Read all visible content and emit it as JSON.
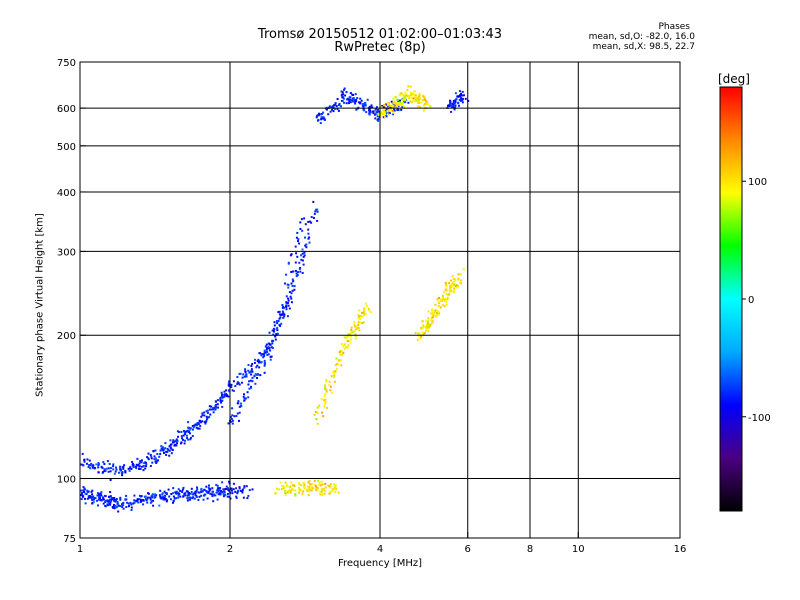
{
  "chart_data": {
    "type": "scatter",
    "title": "Tromsø 20150512 01:02:00–01:03:43",
    "subtitle": "RwPretec (8p)",
    "xlabel": "Frequency [MHz]",
    "ylabel": "Stationary phase Virtual Height [km]",
    "x_scale": "log",
    "y_scale": "log",
    "xlim": [
      1,
      16
    ],
    "ylim": [
      75,
      750
    ],
    "x_ticks": [
      1,
      2,
      4,
      6,
      8,
      10,
      16
    ],
    "x_tick_labels": [
      "1",
      "2",
      "4",
      "6",
      "8",
      "10",
      "16"
    ],
    "y_ticks": [
      75,
      100,
      200,
      300,
      400,
      500,
      600,
      750
    ],
    "y_tick_labels": [
      "75",
      "100",
      "200",
      "300",
      "400",
      "500",
      "600",
      "750"
    ],
    "x_grid": [
      2,
      4,
      6,
      8,
      10
    ],
    "y_grid": [
      100,
      200,
      300,
      400,
      500,
      600
    ],
    "grid": true,
    "colorbar": {
      "label": "[deg]",
      "range": [
        -180,
        180
      ],
      "ticks": [
        100,
        0,
        -100
      ],
      "tick_labels": [
        "100",
        "0",
        "-100"
      ],
      "colors": [
        "#000000",
        "#4b0082",
        "#0000ff",
        "#00aaff",
        "#00ffff",
        "#00ff00",
        "#ffff00",
        "#ff8800",
        "#ff0000"
      ]
    },
    "legend": {
      "title": "Phases",
      "lines": [
        "mean, sd,O: -82.0, 16.0",
        "mean, sd,X: 98.5, 22.7"
      ]
    },
    "series": [
      {
        "name": "O",
        "phase_mean": -82.0,
        "phase_sd": 16.0,
        "traces": [
          {
            "x": [
              1.0,
              1.05,
              1.1,
              1.15,
              1.2,
              1.3,
              1.4,
              1.5,
              1.6,
              1.7,
              1.8,
              1.9,
              2.0,
              2.2
            ],
            "y": [
              93,
              92,
              91,
              90,
              89,
              90,
              91,
              92,
              92,
              93,
              93,
              93,
              94,
              94
            ]
          },
          {
            "x": [
              1.0,
              1.1,
              1.2,
              1.3,
              1.4,
              1.5,
              1.6,
              1.7,
              1.8,
              1.9,
              2.0,
              2.2,
              2.4,
              2.6,
              2.8
            ],
            "y": [
              108,
              106,
              104,
              106,
              110,
              115,
              122,
              128,
              135,
              145,
              155,
              170,
              190,
              240,
              360
            ]
          },
          {
            "x": [
              2.0,
              2.2,
              2.4,
              2.6,
              2.8,
              3.0
            ],
            "y": [
              130,
              155,
              185,
              230,
              290,
              380
            ]
          },
          {
            "x": [
              3.0,
              3.2,
              3.4,
              3.6,
              3.8,
              4.0,
              4.2,
              4.5
            ],
            "y": [
              560,
              600,
              640,
              620,
              600,
              580,
              600,
              620
            ]
          },
          {
            "x": [
              5.5,
              5.7,
              5.9
            ],
            "y": [
              600,
              620,
              640
            ]
          }
        ]
      },
      {
        "name": "X",
        "phase_mean": 98.5,
        "phase_sd": 22.7,
        "traces": [
          {
            "x": [
              2.5,
              2.7,
              2.9,
              3.1,
              3.3
            ],
            "y": [
              95,
              95,
              96,
              95,
              94
            ]
          },
          {
            "x": [
              3.0,
              3.2,
              3.4,
              3.6,
              3.8
            ],
            "y": [
              135,
              160,
              190,
              210,
              230
            ]
          },
          {
            "x": [
              4.0,
              4.2,
              4.4,
              4.6,
              4.8,
              5.0
            ],
            "y": [
              580,
              600,
              620,
              640,
              630,
              600
            ]
          },
          {
            "x": [
              4.8,
              5.0,
              5.2,
              5.4,
              5.6,
              5.8
            ],
            "y": [
              200,
              210,
              225,
              240,
              255,
              265
            ]
          }
        ]
      }
    ]
  }
}
